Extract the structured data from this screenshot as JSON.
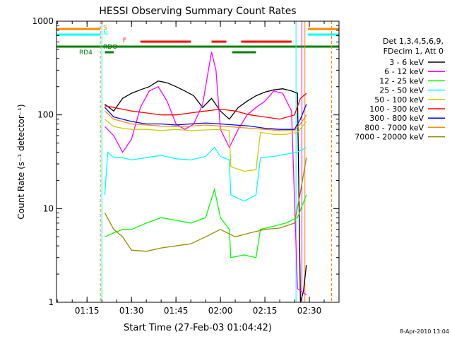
{
  "chart_data": {
    "type": "line",
    "title": "HESSI Observing Summary Count Rates",
    "xlabel": "Start Time (27-Feb-03 01:04:42)",
    "ylabel": "Count Rate (s⁻¹ detector⁻¹)",
    "y_scale": "log",
    "ylim": [
      1,
      1000
    ],
    "xlim": [
      "01:04:42",
      "02:40:00"
    ],
    "x_tick_labels": [
      "01:15",
      "01:30",
      "01:45",
      "02:00",
      "02:15",
      "02:30"
    ],
    "y_tick_labels": [
      "1",
      "10",
      "100",
      "1000"
    ],
    "legend_header": [
      "Det 1,3,4,5,6,9,",
      "FDecim 1, Att 0"
    ],
    "legend_placement": "right",
    "timestamp": "8-Apr-2010 13:04",
    "series": [
      {
        "name": "3 - 6 keV",
        "color": "#000000",
        "x": [
          "01:21:00",
          "01:24:00",
          "01:27:00",
          "01:30:00",
          "01:33:00",
          "01:36:00",
          "01:39:00",
          "01:42:00",
          "01:45:00",
          "01:48:00",
          "01:51:00",
          "01:54:00",
          "01:57:00",
          "02:00:00",
          "02:03:00",
          "02:06:00",
          "02:09:00",
          "02:12:00",
          "02:15:00",
          "02:18:00",
          "02:21:00",
          "02:24:00",
          "02:26:00",
          "02:27:00",
          "02:28:00",
          "02:29:00"
        ],
        "values": [
          130,
          110,
          150,
          170,
          185,
          200,
          230,
          220,
          200,
          180,
          160,
          120,
          150,
          110,
          90,
          120,
          140,
          160,
          175,
          185,
          190,
          180,
          170,
          1,
          1.3,
          2.5
        ]
      },
      {
        "name": "6 - 12 keV",
        "color": "#ff00ff",
        "x": [
          "01:21:00",
          "01:24:00",
          "01:27:00",
          "01:30:00",
          "01:33:00",
          "01:36:00",
          "01:39:00",
          "01:42:00",
          "01:45:00",
          "01:48:00",
          "01:51:00",
          "01:54:00",
          "01:57:00",
          "01:58:30",
          "02:00:00",
          "02:03:00",
          "02:06:00",
          "02:09:00",
          "02:12:00",
          "02:15:00",
          "02:18:00",
          "02:21:00",
          "02:24:00",
          "02:26:00",
          "02:29:00"
        ],
        "values": [
          75,
          60,
          40,
          55,
          120,
          180,
          200,
          140,
          80,
          70,
          80,
          130,
          470,
          300,
          70,
          45,
          70,
          100,
          120,
          140,
          180,
          170,
          110,
          1.4,
          1.2
        ]
      },
      {
        "name": "12 - 25 keV",
        "color": "#00ff00",
        "x": [
          "01:21:00",
          "01:24:00",
          "01:27:00",
          "01:30:00",
          "01:35:00",
          "01:40:00",
          "01:45:00",
          "01:50:00",
          "01:55:00",
          "01:58:00",
          "02:00:00",
          "02:03:00",
          "02:03:30",
          "02:08:00",
          "02:12:00",
          "02:13:30",
          "02:18:00",
          "02:22:00",
          "02:26:00",
          "02:29:00"
        ],
        "values": [
          5,
          5.5,
          6,
          6,
          7,
          8,
          7.5,
          7,
          8,
          16,
          8,
          6,
          3,
          3.2,
          3,
          6,
          6.5,
          7,
          8,
          14
        ]
      },
      {
        "name": "25 - 50 keV",
        "color": "#00ffff",
        "x": [
          "01:21:00",
          "01:22:00",
          "01:24:00",
          "01:27:00",
          "01:30:00",
          "01:35:00",
          "01:40:00",
          "01:45:00",
          "01:50:00",
          "01:55:00",
          "01:58:00",
          "02:00:00",
          "02:03:00",
          "02:03:30",
          "02:08:00",
          "02:12:00",
          "02:13:30",
          "02:18:00",
          "02:22:00",
          "02:26:00",
          "02:29:00"
        ],
        "values": [
          14,
          40,
          35,
          35,
          33,
          35,
          37,
          34,
          33,
          36,
          45,
          36,
          33,
          14,
          12,
          14,
          35,
          36,
          38,
          40,
          45
        ]
      },
      {
        "name": "50 - 100 keV",
        "color": "#cccc00",
        "x": [
          "01:21:00",
          "01:24:00",
          "01:27:00",
          "01:30:00",
          "01:35:00",
          "01:40:00",
          "01:45:00",
          "01:50:00",
          "01:55:00",
          "02:00:00",
          "02:03:00",
          "02:03:30",
          "02:08:00",
          "02:12:00",
          "02:13:30",
          "02:18:00",
          "02:22:00",
          "02:26:00",
          "02:29:00"
        ],
        "values": [
          90,
          75,
          72,
          70,
          70,
          68,
          70,
          68,
          69,
          70,
          68,
          28,
          25,
          26,
          65,
          62,
          62,
          65,
          85
        ]
      },
      {
        "name": "100 - 300 keV",
        "color": "#ff0000",
        "x": [
          "01:21:00",
          "01:24:00",
          "01:27:00",
          "01:30:00",
          "01:35:00",
          "01:40:00",
          "01:45:00",
          "01:50:00",
          "01:55:00",
          "02:00:00",
          "02:05:00",
          "02:10:00",
          "02:15:00",
          "02:20:00",
          "02:25:00",
          "02:27:00",
          "02:29:00"
        ],
        "values": [
          125,
          120,
          115,
          110,
          105,
          100,
          100,
          105,
          110,
          115,
          110,
          100,
          95,
          90,
          100,
          150,
          170
        ]
      },
      {
        "name": "300 - 800 keV",
        "color": "#0000ff",
        "x": [
          "01:21:00",
          "01:24:00",
          "01:27:00",
          "01:30:00",
          "01:35:00",
          "01:40:00",
          "01:45:00",
          "01:50:00",
          "01:55:00",
          "02:00:00",
          "02:05:00",
          "02:10:00",
          "02:15:00",
          "02:20:00",
          "02:25:00",
          "02:27:00",
          "02:29:00"
        ],
        "values": [
          120,
          95,
          90,
          85,
          80,
          80,
          78,
          80,
          82,
          80,
          78,
          76,
          72,
          70,
          70,
          90,
          130
        ]
      },
      {
        "name": "800 - 7000 keV",
        "color": "#ff8800",
        "x": [
          "01:21:00",
          "01:24:00",
          "01:27:00",
          "01:30:00",
          "01:35:00",
          "01:40:00",
          "01:45:00",
          "01:50:00",
          "01:55:00",
          "02:00:00",
          "02:05:00",
          "02:10:00",
          "02:15:00",
          "02:20:00",
          "02:25:00",
          "02:27:00",
          "02:29:00"
        ],
        "values": [
          110,
          90,
          85,
          80,
          78,
          76,
          75,
          76,
          78,
          76,
          74,
          72,
          70,
          68,
          68,
          80,
          100
        ]
      },
      {
        "name": "7000 - 20000 keV",
        "color": "#998800",
        "x": [
          "01:21:00",
          "01:24:00",
          "01:27:00",
          "01:30:00",
          "01:35:00",
          "01:40:00",
          "01:45:00",
          "01:50:00",
          "01:55:00",
          "02:00:00",
          "02:05:00",
          "02:10:00",
          "02:15:00",
          "02:20:00",
          "02:25:00",
          "02:27:00",
          "02:29:00"
        ],
        "values": [
          9,
          6,
          5,
          3.6,
          3.5,
          3.8,
          4,
          4.2,
          5,
          6,
          5,
          5.5,
          6,
          6.2,
          7,
          15,
          35
        ]
      }
    ],
    "flag_labels": [
      {
        "label": "S",
        "color": "#ff8800"
      },
      {
        "label": "N",
        "color": "#00ffff"
      },
      {
        "label": "F",
        "color": "#ff0000"
      },
      {
        "label": "RDO",
        "color": "#008000"
      },
      {
        "label": "RD4",
        "color": "#008000"
      }
    ],
    "flag_bars": [
      {
        "flag": "S",
        "color": "#ff8800",
        "from": "01:04:42",
        "to": "01:19:30"
      },
      {
        "flag": "S",
        "color": "#ff8800",
        "from": "02:29:30",
        "to": "02:40:00"
      },
      {
        "flag": "N",
        "color": "#00ffff",
        "from": "01:04:42",
        "to": "01:19:30"
      },
      {
        "flag": "N",
        "color": "#00ffff",
        "from": "02:29:30",
        "to": "02:40:00"
      },
      {
        "flag": "F",
        "color": "#ff0000",
        "from": "01:33:00",
        "to": "01:50:00"
      },
      {
        "flag": "F",
        "color": "#ff0000",
        "from": "01:57:00",
        "to": "02:02:00"
      },
      {
        "flag": "F",
        "color": "#ff0000",
        "from": "02:07:00",
        "to": "02:24:00"
      },
      {
        "flag": "RDO",
        "color": "#008000",
        "from": "01:04:42",
        "to": "02:40:00"
      },
      {
        "flag": "RD4",
        "color": "#008000",
        "from": "01:21:00",
        "to": "01:24:00"
      },
      {
        "flag": "RD4",
        "color": "#008000",
        "from": "02:04:00",
        "to": "02:12:00"
      }
    ],
    "vertical_markers": [
      {
        "time": "01:19:30",
        "color": "#ff8800",
        "style": "dashed"
      },
      {
        "time": "01:20:00",
        "color": "#00ffff",
        "style": "solid"
      },
      {
        "time": "02:25:30",
        "color": "#00ffff",
        "style": "solid"
      },
      {
        "time": "02:27:30",
        "color": "#ff00ff",
        "style": "solid"
      },
      {
        "time": "02:28:30",
        "color": "#ff8800",
        "style": "solid"
      },
      {
        "time": "02:37:30",
        "color": "#ff8800",
        "style": "dashed"
      }
    ]
  }
}
